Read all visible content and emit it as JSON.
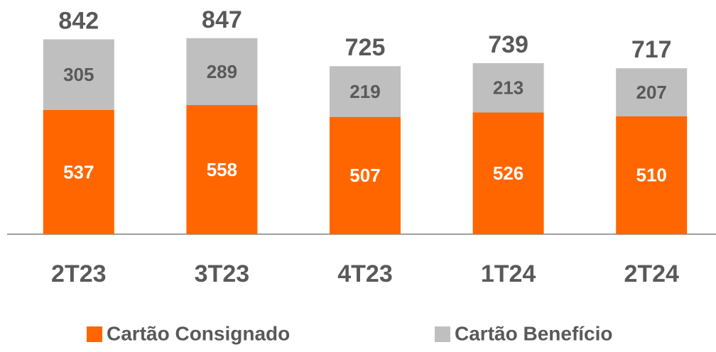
{
  "chart_data": {
    "type": "stacked_bar",
    "categories": [
      "2T23",
      "3T23",
      "4T23",
      "1T24",
      "2T24"
    ],
    "series": [
      {
        "name": "Cartão Consignado",
        "color": "#ff6600",
        "values": [
          537,
          558,
          507,
          526,
          510
        ]
      },
      {
        "name": "Cartão Benefício",
        "color": "#bfbfbf",
        "values": [
          305,
          289,
          219,
          213,
          207
        ]
      }
    ],
    "totals": [
      842,
      847,
      725,
      739,
      717
    ],
    "ylim": [
      0,
      1012
    ]
  }
}
